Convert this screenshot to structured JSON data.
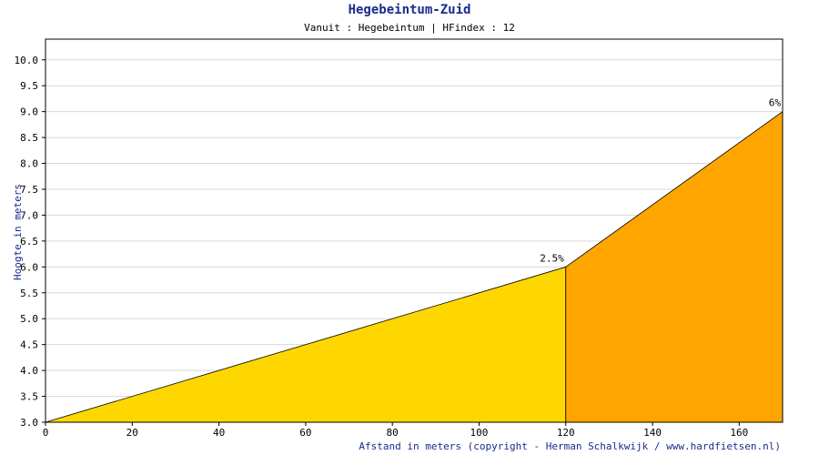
{
  "chart_data": {
    "type": "area",
    "title": "Hegebeintum-Zuid",
    "subtitle": "Vanuit : Hegebeintum | HFindex : 12",
    "xlabel": "Afstand in meters (copyright - Herman Schalkwijk / www.hardfietsen.nl)",
    "ylabel": "Hoogte in meters",
    "xlim": [
      0,
      170
    ],
    "ylim": [
      3.0,
      10.4
    ],
    "x_ticks": [
      0,
      20,
      40,
      60,
      80,
      100,
      120,
      140,
      160
    ],
    "y_ticks": [
      "3.0",
      "3.5",
      "4.0",
      "4.5",
      "5.0",
      "5.5",
      "6.0",
      "6.5",
      "7.0",
      "7.5",
      "8.0",
      "8.5",
      "9.0",
      "9.5",
      "10.0"
    ],
    "grid": true,
    "points": [
      {
        "x": 0,
        "y": 3.0
      },
      {
        "x": 120,
        "y": 6.0
      },
      {
        "x": 170,
        "y": 9.0
      }
    ],
    "segments": [
      {
        "x0": 0,
        "x1": 120,
        "label": "2.5%",
        "color": "#ffd700"
      },
      {
        "x0": 120,
        "x1": 170,
        "label": "6%",
        "color": "#ffa500"
      }
    ]
  }
}
